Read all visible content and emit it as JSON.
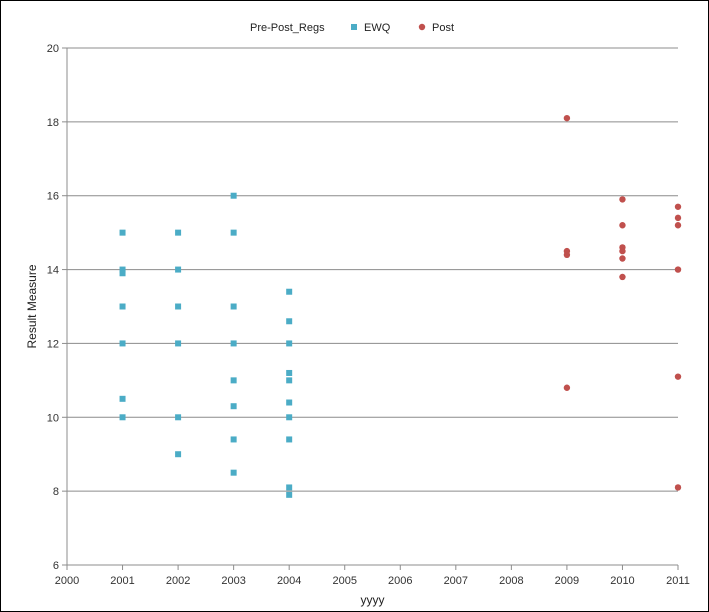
{
  "chart_data": {
    "type": "scatter",
    "xlabel": "yyyy",
    "ylabel": "Result Measure",
    "xlim": [
      2000,
      2011
    ],
    "ylim": [
      6,
      20
    ],
    "x_ticks": [
      "2000",
      "2001",
      "2002",
      "2003",
      "2004",
      "2005",
      "2006",
      "2007",
      "2008",
      "2009",
      "2010",
      "2011"
    ],
    "y_ticks": [
      "6",
      "8",
      "10",
      "12",
      "14",
      "16",
      "18",
      "20"
    ],
    "grid": "horizontal",
    "legend": {
      "title": "Pre-Post_Regs",
      "placement": "top"
    },
    "series": [
      {
        "name": "EWQ",
        "color": "#4BACC6",
        "marker": "square",
        "points": [
          [
            2001,
            15
          ],
          [
            2001,
            14
          ],
          [
            2001,
            13.9
          ],
          [
            2001,
            13
          ],
          [
            2001,
            12
          ],
          [
            2001,
            10.5
          ],
          [
            2001,
            10
          ],
          [
            2002,
            15
          ],
          [
            2002,
            14
          ],
          [
            2002,
            13
          ],
          [
            2002,
            12
          ],
          [
            2002,
            10
          ],
          [
            2002,
            9
          ],
          [
            2003,
            16
          ],
          [
            2003,
            15
          ],
          [
            2003,
            13
          ],
          [
            2003,
            12
          ],
          [
            2003,
            11
          ],
          [
            2003,
            10.3
          ],
          [
            2003,
            9.4
          ],
          [
            2003,
            8.5
          ],
          [
            2004,
            13.4
          ],
          [
            2004,
            12.6
          ],
          [
            2004,
            12
          ],
          [
            2004,
            11.2
          ],
          [
            2004,
            11
          ],
          [
            2004,
            10.4
          ],
          [
            2004,
            10
          ],
          [
            2004,
            9.4
          ],
          [
            2004,
            8.1
          ],
          [
            2004,
            7.9
          ]
        ]
      },
      {
        "name": "Post",
        "color": "#C0504D",
        "marker": "circle",
        "points": [
          [
            2009,
            18.1
          ],
          [
            2009,
            14.5
          ],
          [
            2009,
            14.4
          ],
          [
            2009,
            10.8
          ],
          [
            2010,
            15.9
          ],
          [
            2010,
            15.2
          ],
          [
            2010,
            14.6
          ],
          [
            2010,
            14.5
          ],
          [
            2010,
            14.3
          ],
          [
            2010,
            13.8
          ],
          [
            2011,
            15.7
          ],
          [
            2011,
            15.4
          ],
          [
            2011,
            15.2
          ],
          [
            2011,
            14
          ],
          [
            2011,
            11.1
          ],
          [
            2011,
            8.1
          ]
        ]
      }
    ]
  }
}
